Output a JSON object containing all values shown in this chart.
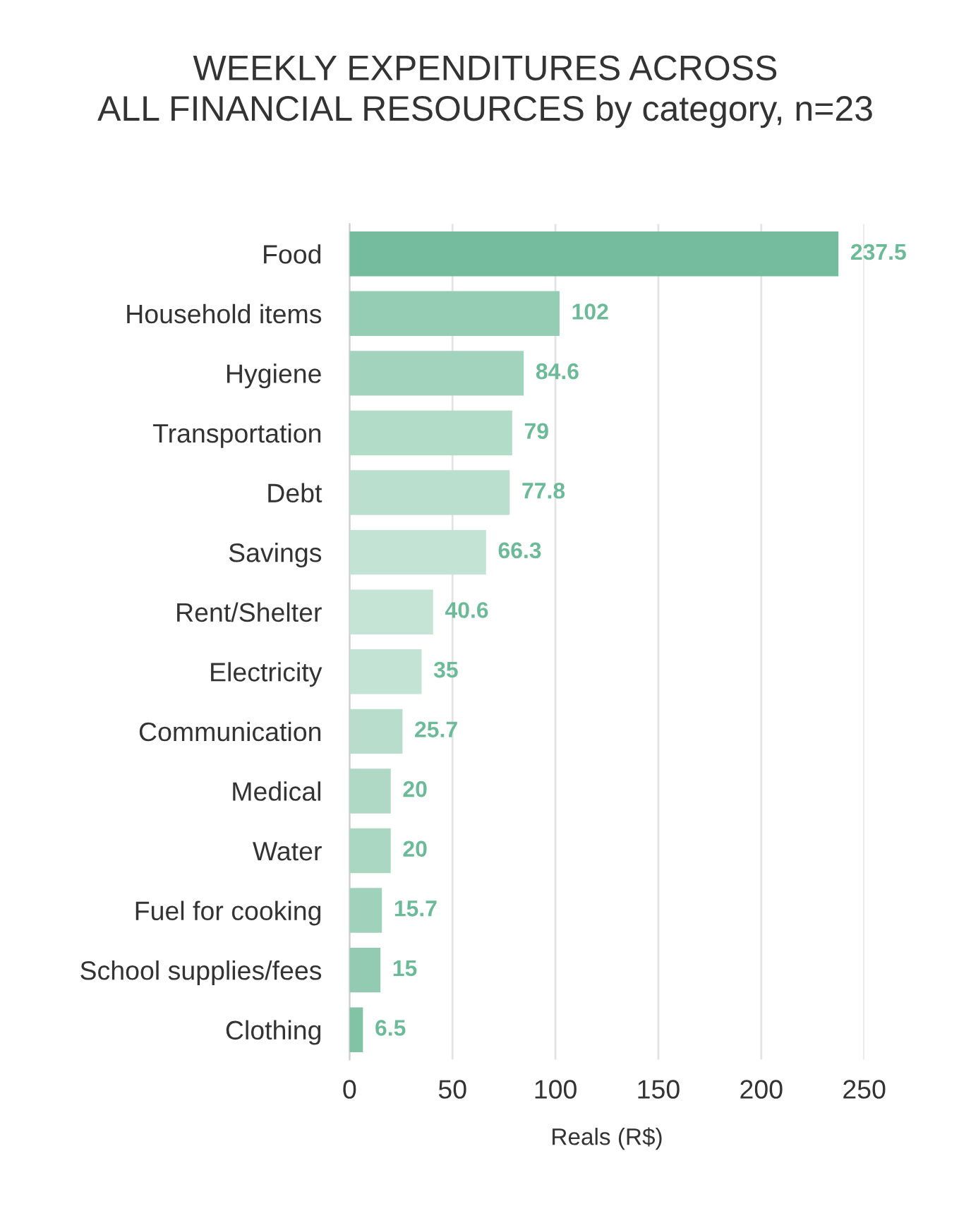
{
  "chart_data": {
    "type": "bar",
    "orientation": "horizontal",
    "title": "WEEKLY EXPENDITURES ACROSS\nALL FINANCIAL RESOURCES by category, n=23",
    "xlabel": "Reals (R$)",
    "categories": [
      "Food",
      "Household items",
      "Hygiene",
      "Transportation",
      "Debt",
      "Savings",
      "Rent/Shelter",
      "Electricity",
      "Communication",
      "Medical",
      "Water",
      "Fuel for cooking",
      "School supplies/fees",
      "Clothing"
    ],
    "values": [
      237.5,
      102,
      84.6,
      79,
      77.8,
      66.3,
      40.6,
      35,
      25.7,
      20,
      20,
      15.7,
      15,
      6.5
    ],
    "colors": [
      "#74bc9d",
      "#95ccb4",
      "#a2d3bd",
      "#b2dbc8",
      "#bbdfce",
      "#c3e3d4",
      "#c6e4d6",
      "#c3e3d4",
      "#b8ddcc",
      "#afd9c5",
      "#aad7c2",
      "#a0d2bb",
      "#92cbb1",
      "#82c3a6"
    ],
    "xlim": [
      0,
      250
    ],
    "xticks": [
      0,
      50,
      100,
      150,
      200,
      250
    ],
    "grid": "x",
    "data_labels": true
  }
}
